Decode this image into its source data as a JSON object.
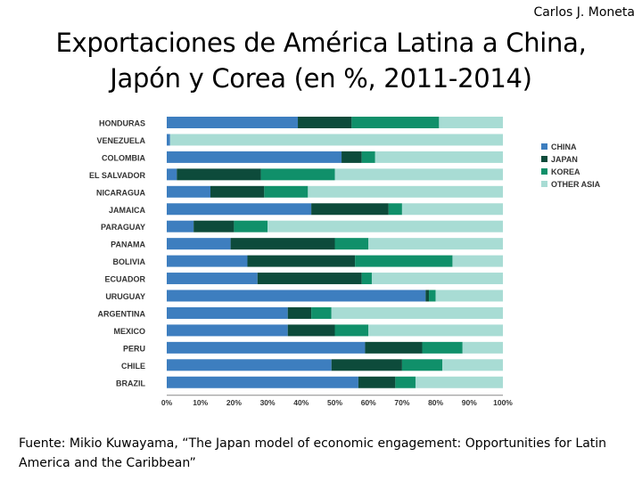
{
  "author": "Carlos J. Moneta",
  "title_line1": "Exportaciones de América Latina a China,",
  "title_line2": "Japón y Corea (en %, 2011-2014)",
  "source": "Fuente: Mikio Kuwayama, “The Japan model of economic engagement: Opportunities for Latin America and the Caribbean”",
  "colors": {
    "china": "#3d7ebf",
    "japan": "#0d4b3b",
    "korea": "#10906a",
    "other_asia": "#a8dcd4"
  },
  "chart_data": {
    "type": "bar",
    "orientation": "horizontal",
    "stacked": true,
    "title": "",
    "xlabel": "",
    "ylabel": "",
    "xlim": [
      0,
      100
    ],
    "x_ticks": [
      "0%",
      "10%",
      "20%",
      "30%",
      "40%",
      "50%",
      "60%",
      "70%",
      "80%",
      "90%",
      "100%"
    ],
    "legend_position": "right",
    "categories": [
      "HONDURAS",
      "VENEZUELA",
      "COLOMBIA",
      "EL SALVADOR",
      "NICARAGUA",
      "JAMAICA",
      "PARAGUAY",
      "PANAMA",
      "BOLIVIA",
      "ECUADOR",
      "URUGUAY",
      "ARGENTINA",
      "MEXICO",
      "PERU",
      "CHILE",
      "BRAZIL"
    ],
    "series": [
      {
        "name": "CHINA",
        "color_key": "china",
        "values": [
          39,
          1,
          52,
          3,
          13,
          43,
          8,
          19,
          24,
          27,
          77,
          36,
          36,
          59,
          49,
          57
        ]
      },
      {
        "name": "JAPAN",
        "color_key": "japan",
        "values": [
          16,
          0,
          6,
          25,
          16,
          23,
          12,
          31,
          32,
          31,
          1,
          7,
          14,
          17,
          21,
          11
        ]
      },
      {
        "name": "KOREA",
        "color_key": "korea",
        "values": [
          26,
          0,
          4,
          22,
          13,
          4,
          10,
          10,
          29,
          3,
          2,
          6,
          10,
          12,
          12,
          6
        ]
      },
      {
        "name": "OTHER ASIA",
        "color_key": "other_asia",
        "values": [
          19,
          99,
          38,
          50,
          58,
          30,
          70,
          40,
          15,
          39,
          20,
          51,
          40,
          12,
          18,
          26
        ]
      }
    ]
  }
}
